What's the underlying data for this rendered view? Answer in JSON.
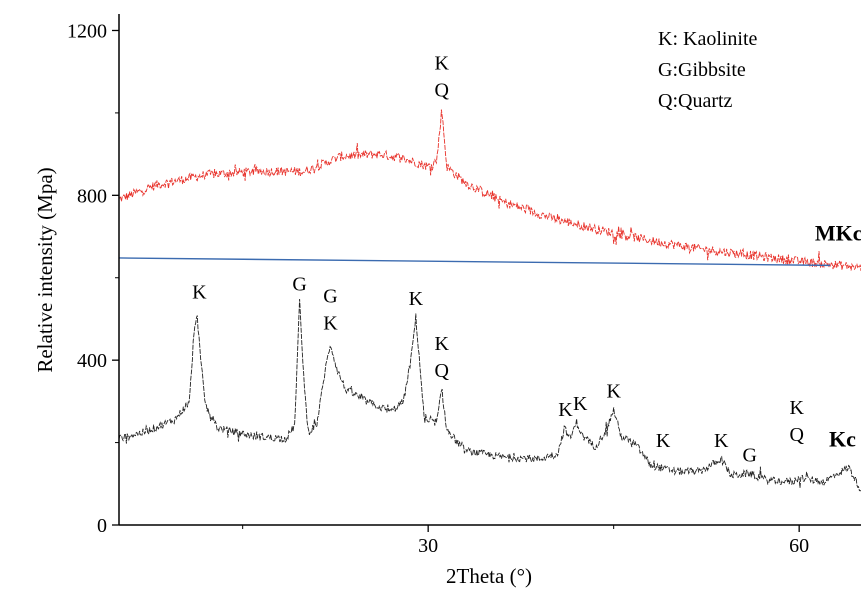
{
  "chart_data": {
    "type": "line",
    "xlabel": "2Theta (°)",
    "ylabel": "Relative intensity (Mpa)",
    "xlim": [
      5,
      65
    ],
    "ylim": [
      0,
      1240
    ],
    "xticks": [
      30,
      60
    ],
    "yticks": [
      0,
      400,
      800,
      1200
    ],
    "grid": false,
    "legend_text": [
      "K: Kaolinite",
      "G:Gibbsite",
      "Q:Quartz"
    ],
    "series": [
      {
        "name": "MKc",
        "color": "#e8312a",
        "noise": 11,
        "points": [
          [
            5,
            790
          ],
          [
            8,
            825
          ],
          [
            12,
            850
          ],
          [
            16,
            858
          ],
          [
            20,
            858
          ],
          [
            23,
            895
          ],
          [
            26,
            900
          ],
          [
            28,
            890
          ],
          [
            30,
            870
          ],
          [
            30.7,
            885
          ],
          [
            31.1,
            1010
          ],
          [
            31.5,
            870
          ],
          [
            33,
            830
          ],
          [
            36,
            785
          ],
          [
            40,
            745
          ],
          [
            44,
            715
          ],
          [
            48,
            690
          ],
          [
            52,
            670
          ],
          [
            56,
            655
          ],
          [
            60,
            640
          ],
          [
            64,
            628
          ],
          [
            65,
            625
          ]
        ]
      },
      {
        "name": "Kc",
        "color": "#222222",
        "noise": 9,
        "points": [
          [
            5,
            210
          ],
          [
            7,
            225
          ],
          [
            9.5,
            255
          ],
          [
            10.7,
            300
          ],
          [
            11,
            440
          ],
          [
            11.3,
            520
          ],
          [
            11.6,
            400
          ],
          [
            12,
            290
          ],
          [
            13,
            235
          ],
          [
            16,
            215
          ],
          [
            18.5,
            210
          ],
          [
            19.2,
            240
          ],
          [
            19.6,
            540
          ],
          [
            20,
            330
          ],
          [
            20.3,
            225
          ],
          [
            21,
            245
          ],
          [
            21.7,
            380
          ],
          [
            22.1,
            440
          ],
          [
            22.6,
            380
          ],
          [
            23.3,
            330
          ],
          [
            25,
            300
          ],
          [
            27,
            275
          ],
          [
            28,
            300
          ],
          [
            28.6,
            400
          ],
          [
            29,
            505
          ],
          [
            29.3,
            400
          ],
          [
            29.7,
            250
          ],
          [
            30.7,
            250
          ],
          [
            31.1,
            330
          ],
          [
            31.5,
            230
          ],
          [
            33,
            180
          ],
          [
            36,
            165
          ],
          [
            39,
            160
          ],
          [
            40.5,
            175
          ],
          [
            41,
            235
          ],
          [
            41.5,
            210
          ],
          [
            42,
            250
          ],
          [
            42.5,
            215
          ],
          [
            43.5,
            190
          ],
          [
            44.4,
            230
          ],
          [
            45,
            280
          ],
          [
            45.6,
            215
          ],
          [
            46.8,
            195
          ],
          [
            48,
            145
          ],
          [
            50,
            130
          ],
          [
            52,
            130
          ],
          [
            53.7,
            160
          ],
          [
            54.5,
            120
          ],
          [
            56,
            125
          ],
          [
            57.5,
            108
          ],
          [
            59.5,
            105
          ],
          [
            60,
            115
          ],
          [
            62,
            105
          ],
          [
            64,
            140
          ],
          [
            65,
            85
          ]
        ]
      }
    ],
    "peaks": [
      {
        "x": 31.1,
        "y": 1015,
        "lines": [
          "K",
          "Q"
        ]
      },
      {
        "x": 11.5,
        "y": 525,
        "lines": [
          "K"
        ]
      },
      {
        "x": 19.6,
        "y": 545,
        "lines": [
          "G"
        ]
      },
      {
        "x": 22.1,
        "y": 450,
        "lines": [
          "G",
          "K"
        ]
      },
      {
        "x": 29.0,
        "y": 510,
        "lines": [
          "K"
        ]
      },
      {
        "x": 31.1,
        "y": 335,
        "lines": [
          "K",
          "Q"
        ]
      },
      {
        "x": 41.1,
        "y": 240,
        "lines": [
          "K"
        ]
      },
      {
        "x": 42.3,
        "y": 255,
        "lines": [
          "K"
        ]
      },
      {
        "x": 45.0,
        "y": 285,
        "lines": [
          "K"
        ]
      },
      {
        "x": 49.0,
        "y": 165,
        "lines": [
          "K"
        ]
      },
      {
        "x": 53.7,
        "y": 165,
        "lines": [
          "K"
        ]
      },
      {
        "x": 56.0,
        "y": 130,
        "lines": [
          "G"
        ]
      },
      {
        "x": 59.8,
        "y": 180,
        "lines": [
          "K",
          "Q"
        ]
      }
    ],
    "series_labels": [
      {
        "text": "MKc",
        "x": 63.2,
        "y": 690
      },
      {
        "text": "Kc",
        "x": 63.5,
        "y": 190
      }
    ],
    "reference_line": {
      "color": "#3b6bb0",
      "from": [
        5,
        648
      ],
      "to": [
        62.5,
        630
      ]
    }
  }
}
